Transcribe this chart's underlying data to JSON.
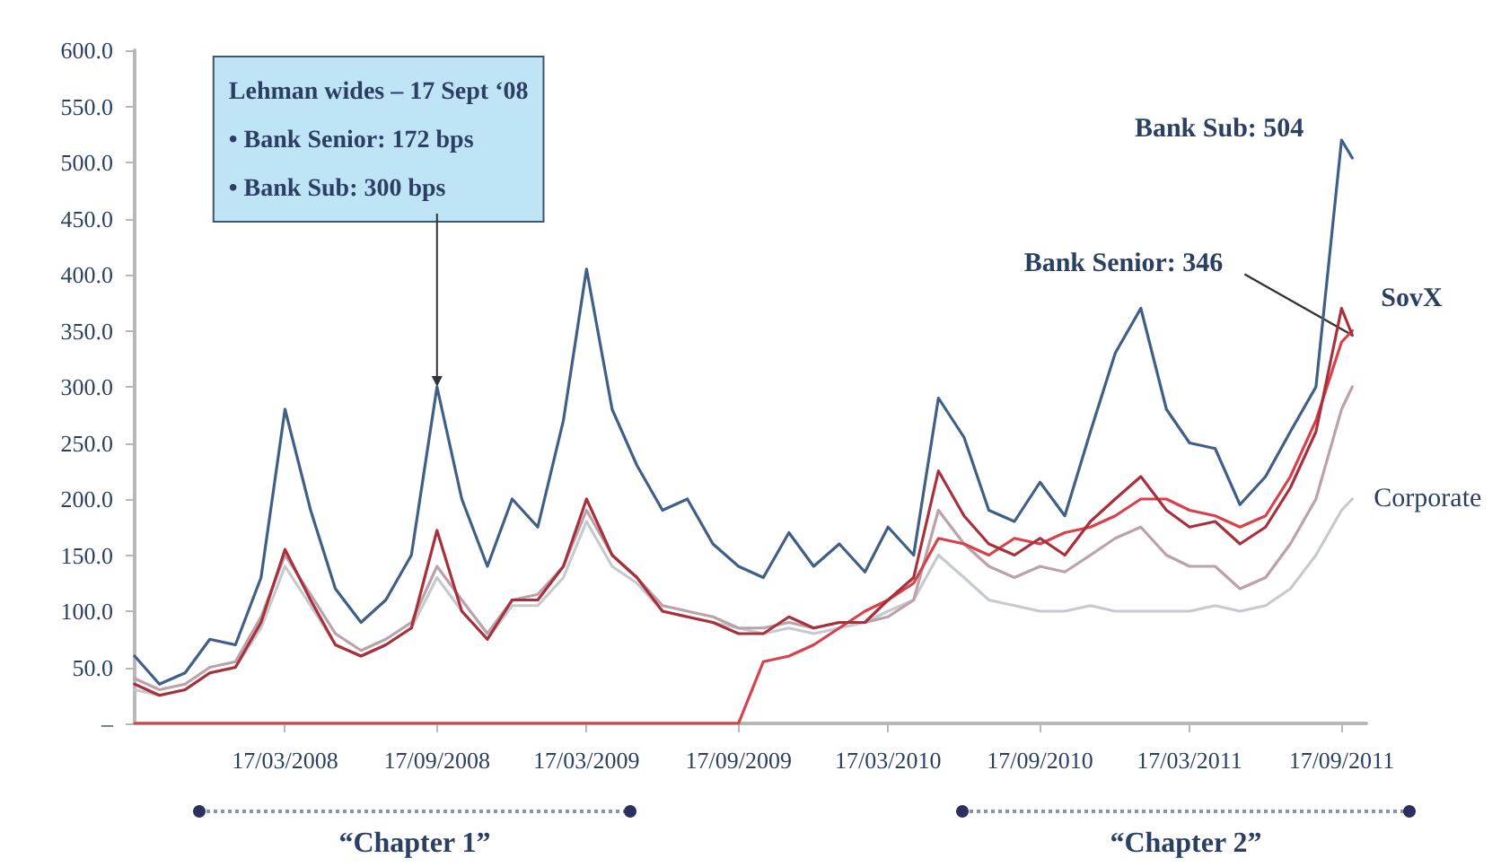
{
  "chart_data": {
    "type": "line",
    "x": [
      "2007-09-17",
      "2007-10-17",
      "2007-11-17",
      "2007-12-17",
      "2008-01-17",
      "2008-02-17",
      "2008-03-17",
      "2008-04-17",
      "2008-05-17",
      "2008-06-17",
      "2008-07-17",
      "2008-08-17",
      "2008-09-17",
      "2008-10-17",
      "2008-11-17",
      "2008-12-17",
      "2009-01-17",
      "2009-02-17",
      "2009-03-17",
      "2009-04-17",
      "2009-05-17",
      "2009-06-17",
      "2009-07-17",
      "2009-08-17",
      "2009-09-17",
      "2009-10-17",
      "2009-11-17",
      "2009-12-17",
      "2010-01-17",
      "2010-02-17",
      "2010-03-17",
      "2010-04-17",
      "2010-05-17",
      "2010-06-17",
      "2010-07-17",
      "2010-08-17",
      "2010-09-17",
      "2010-10-17",
      "2010-11-17",
      "2010-12-17",
      "2011-01-17",
      "2011-02-17",
      "2011-03-17",
      "2011-04-17",
      "2011-05-17",
      "2011-06-17",
      "2011-07-17",
      "2011-08-17",
      "2011-09-17",
      "2011-09-30"
    ],
    "series": [
      {
        "color": "#3f5f86",
        "values": [
          60,
          35,
          45,
          75,
          70,
          130,
          280,
          190,
          120,
          90,
          110,
          150,
          300,
          200,
          140,
          200,
          175,
          270,
          405,
          280,
          230,
          190,
          200,
          160,
          140,
          130,
          170,
          140,
          160,
          135,
          175,
          150,
          290,
          255,
          190,
          180,
          215,
          185,
          260,
          330,
          370,
          280,
          250,
          245,
          195,
          220,
          260,
          300,
          520,
          504
        ]
      },
      {
        "color": "#a8303c",
        "values": [
          35,
          25,
          30,
          45,
          50,
          90,
          155,
          110,
          70,
          60,
          70,
          85,
          172,
          100,
          75,
          110,
          110,
          140,
          200,
          150,
          130,
          100,
          95,
          90,
          80,
          80,
          95,
          85,
          90,
          90,
          110,
          130,
          225,
          185,
          160,
          150,
          165,
          150,
          180,
          200,
          220,
          190,
          175,
          180,
          160,
          175,
          210,
          260,
          370,
          346
        ]
      },
      {
        "name": "SovX",
        "color": "#d8404a",
        "values": [
          0,
          0,
          0,
          0,
          0,
          0,
          0,
          0,
          0,
          0,
          0,
          0,
          0,
          0,
          0,
          0,
          0,
          0,
          0,
          0,
          0,
          0,
          0,
          0,
          0,
          55,
          60,
          70,
          85,
          100,
          110,
          125,
          165,
          160,
          150,
          165,
          160,
          170,
          175,
          185,
          200,
          200,
          190,
          185,
          175,
          185,
          220,
          270,
          340,
          350
        ]
      },
      {
        "color": "#bba2a8",
        "values": [
          40,
          30,
          35,
          50,
          55,
          95,
          150,
          115,
          80,
          65,
          75,
          90,
          140,
          110,
          80,
          110,
          115,
          140,
          190,
          150,
          130,
          105,
          100,
          95,
          85,
          85,
          90,
          85,
          90,
          90,
          95,
          110,
          190,
          160,
          140,
          130,
          140,
          135,
          150,
          165,
          175,
          150,
          140,
          140,
          120,
          130,
          160,
          200,
          280,
          300
        ]
      },
      {
        "name": "Corporate",
        "color": "#c6cacf",
        "values": [
          30,
          25,
          30,
          45,
          50,
          85,
          140,
          105,
          70,
          60,
          70,
          85,
          130,
          100,
          75,
          105,
          105,
          130,
          180,
          140,
          125,
          100,
          95,
          90,
          85,
          80,
          85,
          80,
          85,
          90,
          100,
          110,
          150,
          130,
          110,
          105,
          100,
          100,
          105,
          100,
          100,
          100,
          100,
          105,
          100,
          105,
          120,
          150,
          190,
          200
        ]
      }
    ],
    "xlim": [
      "2007-09-17",
      "2011-10-17"
    ],
    "xticks": [
      {
        "value": "2008-03-17",
        "label": "17/03/2008"
      },
      {
        "value": "2008-09-17",
        "label": "17/09/2008"
      },
      {
        "value": "2009-03-17",
        "label": "17/03/2009"
      },
      {
        "value": "2009-09-17",
        "label": "17/09/2009"
      },
      {
        "value": "2010-03-17",
        "label": "17/03/2010"
      },
      {
        "value": "2010-09-17",
        "label": "17/09/2010"
      },
      {
        "value": "2011-03-17",
        "label": "17/03/2011"
      },
      {
        "value": "2011-09-17",
        "label": "17/09/2011"
      }
    ],
    "ylim": [
      0,
      600
    ],
    "yticks": [
      {
        "value": 0,
        "label": "–"
      },
      {
        "value": 50,
        "label": "50.0"
      },
      {
        "value": 100,
        "label": "100.0"
      },
      {
        "value": 150,
        "label": "150.0"
      },
      {
        "value": 200,
        "label": "200.0"
      },
      {
        "value": 250,
        "label": "250.0"
      },
      {
        "value": 300,
        "label": "300.0"
      },
      {
        "value": 350,
        "label": "350.0"
      },
      {
        "value": 400,
        "label": "400.0"
      },
      {
        "value": 450,
        "label": "450.0"
      },
      {
        "value": 500,
        "label": "500.0"
      },
      {
        "value": 550,
        "label": "550.0"
      },
      {
        "value": 600,
        "label": "600.0"
      }
    ],
    "annotations": [
      {
        "text": "Lehman wides – 17 Sept ‘08\n• Bank Senior: 172 bps\n• Bank Sub: 300 bps",
        "x": "2008-09-17",
        "y": 300
      },
      {
        "text": "Bank Sub: 504",
        "x": "2011-09-30",
        "y": 504
      },
      {
        "text": "Bank Senior: 346",
        "x": "2011-09-30",
        "y": 346
      },
      "“Chapter 1”",
      "“Chapter 2”"
    ],
    "grid": false,
    "marker": "none",
    "line_style": "solid"
  }
}
